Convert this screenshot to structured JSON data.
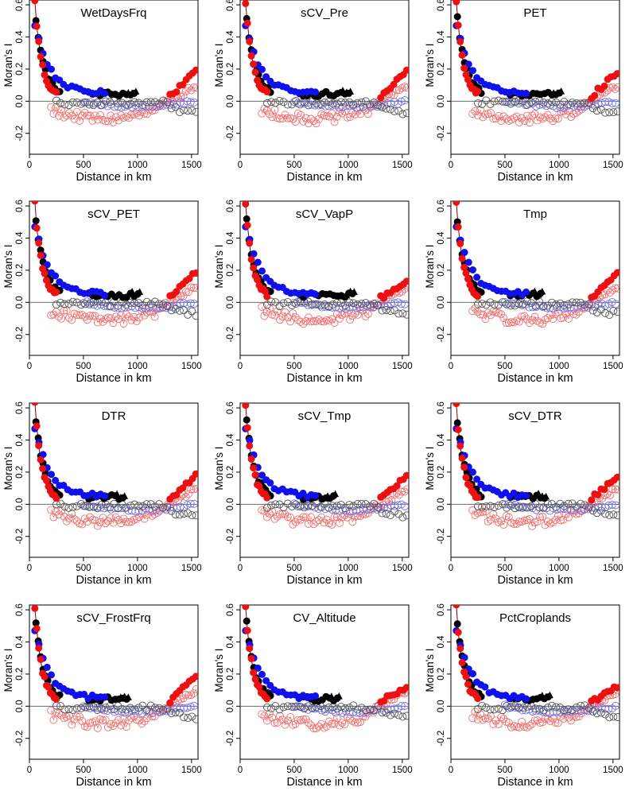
{
  "figure": {
    "xlabel": "Distance in km",
    "ylabel": "Moran's  I",
    "xlim": [
      0,
      1560
    ],
    "ylim": [
      -0.33,
      0.63
    ],
    "xticks": [
      0,
      500,
      1000,
      1500
    ],
    "yticks": [
      -0.2,
      0.0,
      0.2,
      0.4,
      0.6
    ],
    "ytick_labels": [
      "-0.2",
      "0.0",
      "0.2",
      "0.4",
      "0.6"
    ],
    "reference_line_y": 0,
    "series_legend": {
      "black": "black circles/triangles",
      "blue": "blue circles",
      "red": "red circles"
    },
    "colors": {
      "black": "#000000",
      "blue": "#1010ee",
      "red": "#ee1010",
      "blue_open": "#6f6fe8",
      "red_open": "#f07070",
      "black_open": "#505050"
    }
  },
  "chart_data": [
    {
      "type": "scatter",
      "title": "WetDaysFrq",
      "variant": 0
    },
    {
      "type": "scatter",
      "title": "sCV_Pre",
      "variant": 1
    },
    {
      "type": "scatter",
      "title": "PET",
      "variant": 2
    },
    {
      "type": "scatter",
      "title": "sCV_PET",
      "variant": 3
    },
    {
      "type": "scatter",
      "title": "sCV_VapP",
      "variant": 4
    },
    {
      "type": "scatter",
      "title": "Tmp",
      "variant": 5
    },
    {
      "type": "scatter",
      "title": "DTR",
      "variant": 6
    },
    {
      "type": "scatter",
      "title": "sCV_Tmp",
      "variant": 7
    },
    {
      "type": "scatter",
      "title": "sCV_DTR",
      "variant": 8
    },
    {
      "type": "scatter",
      "title": "sCV_FrostFrq",
      "variant": 9
    },
    {
      "type": "scatter",
      "title": "CV_Altitude",
      "variant": 10
    },
    {
      "type": "scatter",
      "title": "PctCroplands",
      "variant": 11
    }
  ]
}
